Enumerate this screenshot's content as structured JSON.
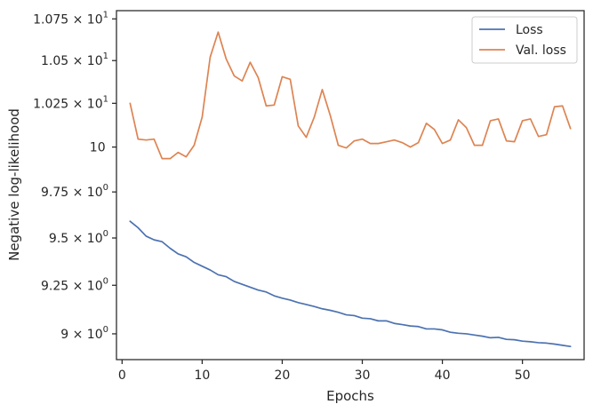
{
  "chart_data": {
    "type": "line",
    "title": "",
    "xlabel": "Epochs",
    "ylabel": "Negative log-likelihood",
    "yscale": "log",
    "xlim": [
      -0.7,
      57.7
    ],
    "ylim": [
      8.87,
      10.8
    ],
    "xticks": [
      {
        "value": 0,
        "label": "0"
      },
      {
        "value": 10,
        "label": "10"
      },
      {
        "value": 20,
        "label": "20"
      },
      {
        "value": 30,
        "label": "30"
      },
      {
        "value": 40,
        "label": "40"
      },
      {
        "value": 50,
        "label": "50"
      }
    ],
    "yticks": [
      {
        "value": 9.0,
        "base": "9",
        "exp": "0"
      },
      {
        "value": 9.25,
        "base": "9.25",
        "exp": "0"
      },
      {
        "value": 9.5,
        "base": "9.5",
        "exp": "0"
      },
      {
        "value": 9.75,
        "base": "9.75",
        "exp": "0"
      },
      {
        "value": 10.0,
        "base": "10",
        "exp": "1"
      },
      {
        "value": 10.25,
        "base": "1.025",
        "exp": "1"
      },
      {
        "value": 10.5,
        "base": "1.05",
        "exp": "1"
      },
      {
        "value": 10.75,
        "base": "1.075",
        "exp": "1"
      }
    ],
    "grid": false,
    "legend_position": "top-right",
    "x": [
      1,
      2,
      3,
      4,
      5,
      6,
      7,
      8,
      9,
      10,
      11,
      12,
      13,
      14,
      15,
      16,
      17,
      18,
      19,
      20,
      21,
      22,
      23,
      24,
      25,
      26,
      27,
      28,
      29,
      30,
      31,
      32,
      33,
      34,
      35,
      36,
      37,
      38,
      39,
      40,
      41,
      42,
      43,
      44,
      45,
      46,
      47,
      48,
      49,
      50,
      51,
      52,
      53,
      54,
      55,
      56
    ],
    "series": [
      {
        "name": "Loss",
        "color": "#4c72b0",
        "values": [
          9.59,
          9.555,
          9.51,
          9.49,
          9.48,
          9.445,
          9.415,
          9.4,
          9.37,
          9.35,
          9.33,
          9.305,
          9.295,
          9.27,
          9.255,
          9.24,
          9.225,
          9.215,
          9.195,
          9.183,
          9.173,
          9.16,
          9.15,
          9.14,
          9.128,
          9.12,
          9.11,
          9.097,
          9.093,
          9.08,
          9.077,
          9.066,
          9.066,
          9.053,
          9.047,
          9.04,
          9.037,
          9.025,
          9.025,
          9.02,
          9.008,
          9.003,
          9.0,
          8.994,
          8.988,
          8.98,
          8.982,
          8.972,
          8.97,
          8.963,
          8.96,
          8.955,
          8.953,
          8.948,
          8.942,
          8.936
        ]
      },
      {
        "name": "Val. loss",
        "color": "#dd8452",
        "values": [
          10.25,
          10.045,
          10.04,
          10.045,
          9.935,
          9.935,
          9.97,
          9.945,
          10.01,
          10.17,
          10.52,
          10.67,
          10.51,
          10.41,
          10.38,
          10.49,
          10.4,
          10.235,
          10.24,
          10.405,
          10.39,
          10.12,
          10.055,
          10.17,
          10.33,
          10.18,
          10.01,
          9.995,
          10.035,
          10.045,
          10.02,
          10.02,
          10.03,
          10.04,
          10.025,
          10.0,
          10.025,
          10.135,
          10.1,
          10.02,
          10.04,
          10.155,
          10.11,
          10.01,
          10.01,
          10.15,
          10.16,
          10.035,
          10.03,
          10.15,
          10.16,
          10.06,
          10.07,
          10.23,
          10.235,
          10.105
        ]
      }
    ]
  }
}
